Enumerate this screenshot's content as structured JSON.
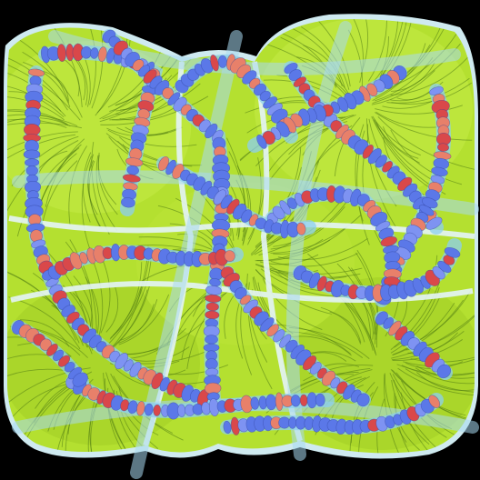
{
  "image": {
    "subject": "abstract-bead-strands-artwork",
    "colors": {
      "background": "#000000",
      "lime": "#b4e030",
      "lime_dark": "#7fb21a",
      "fiber": "#4f7a12",
      "halo": "#cfeaf0",
      "pale_blue": "#a8d8f0",
      "tube": "#8ccff0",
      "bead_blue": "#5b78e8",
      "bead_periwinkle": "#7e93f2",
      "bead_red": "#d9484a",
      "bead_coral": "#e8806a"
    }
  }
}
